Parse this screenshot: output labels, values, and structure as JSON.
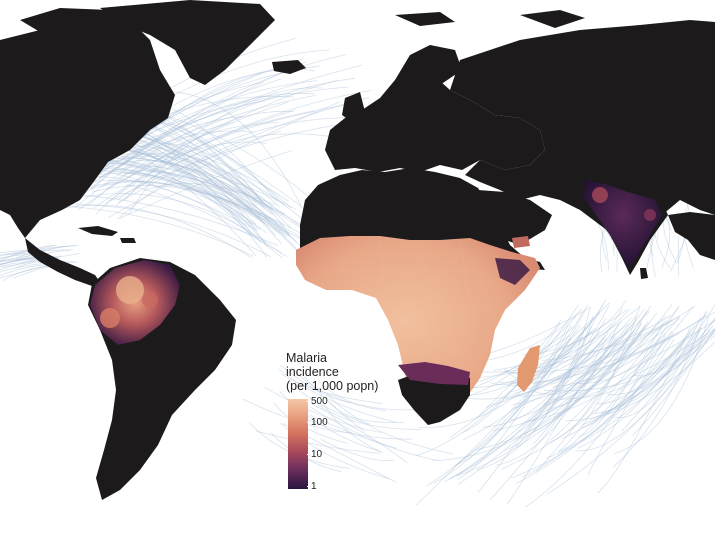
{
  "legend": {
    "title_lines": [
      "Malaria",
      "incidence",
      "(per 1,000 popn)"
    ],
    "ticks": [
      {
        "label": "500",
        "value": 500
      },
      {
        "label": "100",
        "value": 100
      },
      {
        "label": "10",
        "value": 10
      },
      {
        "label": "1",
        "value": 1
      }
    ],
    "scale": "log",
    "range": [
      1,
      500
    ],
    "colors": [
      "#f4c7a6",
      "#e9a381",
      "#d4735f",
      "#a84a5b",
      "#6e2e5c",
      "#2a1440"
    ]
  },
  "colors": {
    "land": "#1c1a1b",
    "ocean": "#ffffff",
    "storm_tracks": "#a9bfd6",
    "high_incidence": "#e9a381",
    "mid_incidence": "#a84a5b",
    "low_incidence": "#2a1440"
  }
}
